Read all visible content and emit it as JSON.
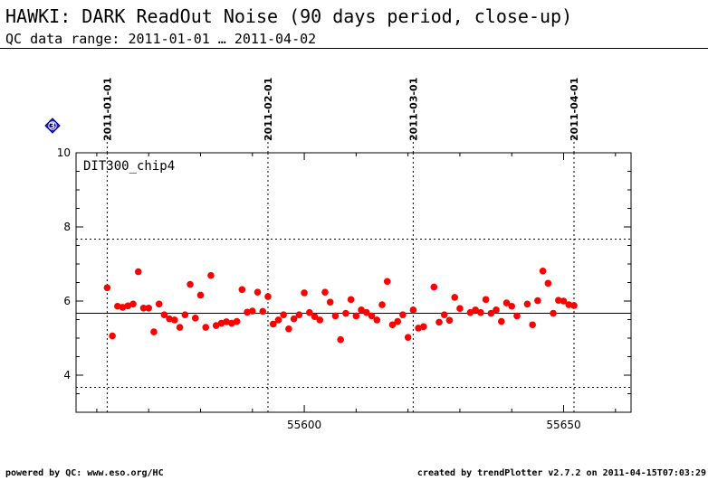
{
  "header": {
    "title": "HAWKI: DARK ReadOut Noise (90 days period, close-up)",
    "subtitle": "QC data range: 2011-01-01 … 2011-04-02"
  },
  "footer": {
    "left": "powered by QC: www.eso.org/HC",
    "right": "created by trendPlotter v2.7.2 on 2011-04-15T07:03:29"
  },
  "badge": {
    "label": "3",
    "color": "#1a1aff"
  },
  "chart_data": {
    "type": "scatter",
    "panel_label": "DIT300_chip4",
    "xlim": [
      55556,
      55663
    ],
    "ylim": [
      3,
      10
    ],
    "x_ticks": [
      55600,
      55650
    ],
    "x_tick_labels": [
      "55600",
      "55650"
    ],
    "y_ticks": [
      4,
      6,
      8,
      10
    ],
    "y_tick_labels": [
      "4",
      "6",
      "8",
      "10"
    ],
    "date_markers": [
      {
        "x": 55562,
        "label": "2011-01-01"
      },
      {
        "x": 55593,
        "label": "2011-02-01"
      },
      {
        "x": 55621,
        "label": "2011-03-01"
      },
      {
        "x": 55652,
        "label": "2011-04-01"
      }
    ],
    "reference_lines": {
      "mean": 5.67,
      "upper": 7.67,
      "lower": 3.67
    },
    "colors": {
      "points": "#ff0000",
      "reference": "#000000"
    },
    "points": [
      {
        "x": 55562.0,
        "y": 6.36
      },
      {
        "x": 55563.0,
        "y": 5.06
      },
      {
        "x": 55564.0,
        "y": 5.86
      },
      {
        "x": 55565.0,
        "y": 5.83
      },
      {
        "x": 55566.0,
        "y": 5.87
      },
      {
        "x": 55567.0,
        "y": 5.92
      },
      {
        "x": 55568.0,
        "y": 6.79
      },
      {
        "x": 55569.0,
        "y": 5.81
      },
      {
        "x": 55570.0,
        "y": 5.81
      },
      {
        "x": 55571.0,
        "y": 5.17
      },
      {
        "x": 55572.0,
        "y": 5.92
      },
      {
        "x": 55573.0,
        "y": 5.63
      },
      {
        "x": 55574.0,
        "y": 5.52
      },
      {
        "x": 55575.0,
        "y": 5.49
      },
      {
        "x": 55576.0,
        "y": 5.29
      },
      {
        "x": 55577.0,
        "y": 5.63
      },
      {
        "x": 55578.0,
        "y": 6.45
      },
      {
        "x": 55579.0,
        "y": 5.54
      },
      {
        "x": 55580.0,
        "y": 6.16
      },
      {
        "x": 55581.0,
        "y": 5.29
      },
      {
        "x": 55582.0,
        "y": 6.69
      },
      {
        "x": 55583.0,
        "y": 5.34
      },
      {
        "x": 55584.0,
        "y": 5.4
      },
      {
        "x": 55585.0,
        "y": 5.44
      },
      {
        "x": 55586.0,
        "y": 5.4
      },
      {
        "x": 55587.0,
        "y": 5.45
      },
      {
        "x": 55588.0,
        "y": 6.31
      },
      {
        "x": 55589.0,
        "y": 5.7
      },
      {
        "x": 55590.0,
        "y": 5.73
      },
      {
        "x": 55591.0,
        "y": 6.24
      },
      {
        "x": 55592.0,
        "y": 5.72
      },
      {
        "x": 55593.0,
        "y": 6.12
      },
      {
        "x": 55594.0,
        "y": 5.38
      },
      {
        "x": 55595.0,
        "y": 5.49
      },
      {
        "x": 55596.0,
        "y": 5.63
      },
      {
        "x": 55597.0,
        "y": 5.25
      },
      {
        "x": 55598.0,
        "y": 5.52
      },
      {
        "x": 55599.0,
        "y": 5.63
      },
      {
        "x": 55600.0,
        "y": 6.22
      },
      {
        "x": 55601.0,
        "y": 5.69
      },
      {
        "x": 55602.0,
        "y": 5.58
      },
      {
        "x": 55603.0,
        "y": 5.49
      },
      {
        "x": 55604.0,
        "y": 6.24
      },
      {
        "x": 55605.0,
        "y": 5.97
      },
      {
        "x": 55606.0,
        "y": 5.6
      },
      {
        "x": 55607.0,
        "y": 4.96
      },
      {
        "x": 55608.0,
        "y": 5.67
      },
      {
        "x": 55609.0,
        "y": 6.04
      },
      {
        "x": 55610.0,
        "y": 5.6
      },
      {
        "x": 55611.0,
        "y": 5.76
      },
      {
        "x": 55612.0,
        "y": 5.69
      },
      {
        "x": 55613.0,
        "y": 5.6
      },
      {
        "x": 55614.0,
        "y": 5.49
      },
      {
        "x": 55615.0,
        "y": 5.9
      },
      {
        "x": 55616.0,
        "y": 6.53
      },
      {
        "x": 55617.0,
        "y": 5.36
      },
      {
        "x": 55618.0,
        "y": 5.45
      },
      {
        "x": 55619.0,
        "y": 5.63
      },
      {
        "x": 55620.0,
        "y": 5.02
      },
      {
        "x": 55621.0,
        "y": 5.76
      },
      {
        "x": 55622.0,
        "y": 5.27
      },
      {
        "x": 55623.0,
        "y": 5.31
      },
      {
        "x": 55625.0,
        "y": 6.38
      },
      {
        "x": 55626.0,
        "y": 5.43
      },
      {
        "x": 55627.0,
        "y": 5.63
      },
      {
        "x": 55628.0,
        "y": 5.48
      },
      {
        "x": 55629.0,
        "y": 6.1
      },
      {
        "x": 55630.0,
        "y": 5.8
      },
      {
        "x": 55632.0,
        "y": 5.69
      },
      {
        "x": 55633.0,
        "y": 5.76
      },
      {
        "x": 55634.0,
        "y": 5.69
      },
      {
        "x": 55635.0,
        "y": 6.04
      },
      {
        "x": 55636.0,
        "y": 5.67
      },
      {
        "x": 55637.0,
        "y": 5.76
      },
      {
        "x": 55638.0,
        "y": 5.45
      },
      {
        "x": 55639.0,
        "y": 5.95
      },
      {
        "x": 55640.0,
        "y": 5.86
      },
      {
        "x": 55641.0,
        "y": 5.6
      },
      {
        "x": 55643.0,
        "y": 5.92
      },
      {
        "x": 55644.0,
        "y": 5.36
      },
      {
        "x": 55645.0,
        "y": 6.01
      },
      {
        "x": 55646.0,
        "y": 6.81
      },
      {
        "x": 55647.0,
        "y": 6.48
      },
      {
        "x": 55648.0,
        "y": 5.67
      },
      {
        "x": 55649.0,
        "y": 6.02
      },
      {
        "x": 55650.0,
        "y": 6.0
      },
      {
        "x": 55651.0,
        "y": 5.9
      },
      {
        "x": 55652.0,
        "y": 5.88
      }
    ]
  }
}
